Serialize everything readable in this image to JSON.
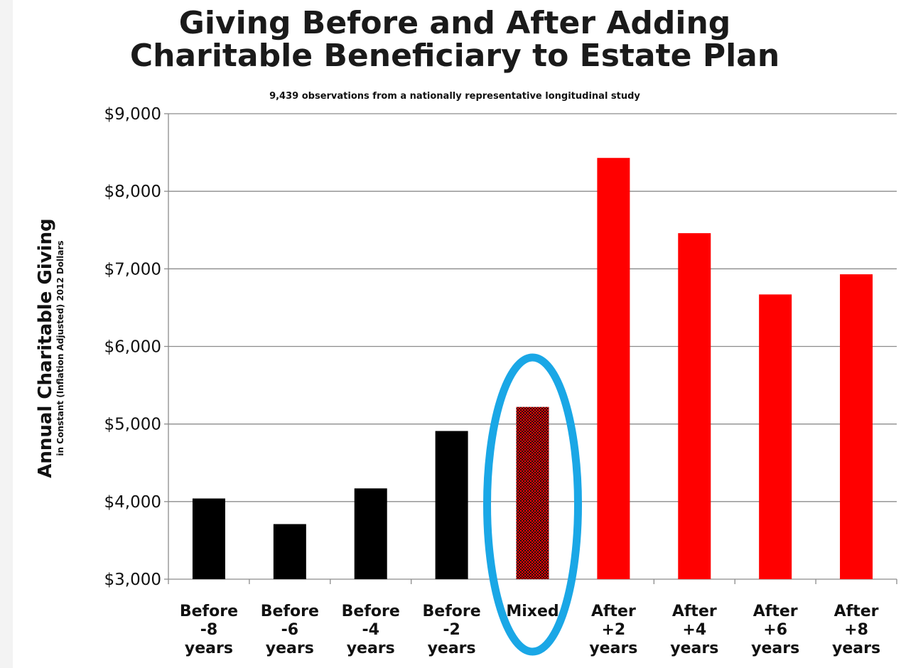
{
  "chart_data": {
    "type": "bar",
    "title": "Giving Before and After Adding Charitable Beneficiary to Estate Plan",
    "title_lines": [
      "Giving Before and After Adding",
      "Charitable Beneficiary to Estate Plan"
    ],
    "subtitle": "9,439 observations from a nationally representative longitudinal study",
    "ylabel": "Annual Charitable Giving",
    "ylabel_sub": "in Constant (Inflation Adjusted) 2012 Dollars",
    "xlabel": "",
    "ylim": [
      3000,
      9000
    ],
    "yticks": [
      3000,
      4000,
      5000,
      6000,
      7000,
      8000,
      9000
    ],
    "ytick_labels": [
      "$3,000",
      "$4,000",
      "$5,000",
      "$6,000",
      "$7,000",
      "$8,000",
      "$9,000"
    ],
    "grid": true,
    "categories": [
      [
        "Before",
        "-8",
        "years"
      ],
      [
        "Before",
        "-6",
        "years"
      ],
      [
        "Before",
        "-4",
        "years"
      ],
      [
        "Before",
        "-2",
        "years"
      ],
      [
        "Mixed"
      ],
      [
        "After",
        "+2",
        "years"
      ],
      [
        "After",
        "+4",
        "years"
      ],
      [
        "After",
        "+6",
        "years"
      ],
      [
        "After",
        "+8",
        "years"
      ]
    ],
    "values": [
      4040,
      3710,
      4170,
      4910,
      5220,
      8430,
      7460,
      6670,
      6930
    ],
    "bar_styles": [
      "solid-black",
      "solid-black",
      "solid-black",
      "solid-black",
      "checkered-red",
      "solid-red",
      "solid-red",
      "solid-red",
      "solid-red"
    ],
    "highlight": {
      "category_index": 4,
      "shape": "ellipse",
      "color": "#1aa7e6"
    },
    "colors": {
      "black": "#000000",
      "red": "#ff0000",
      "grid": "#8c8c8c"
    }
  }
}
